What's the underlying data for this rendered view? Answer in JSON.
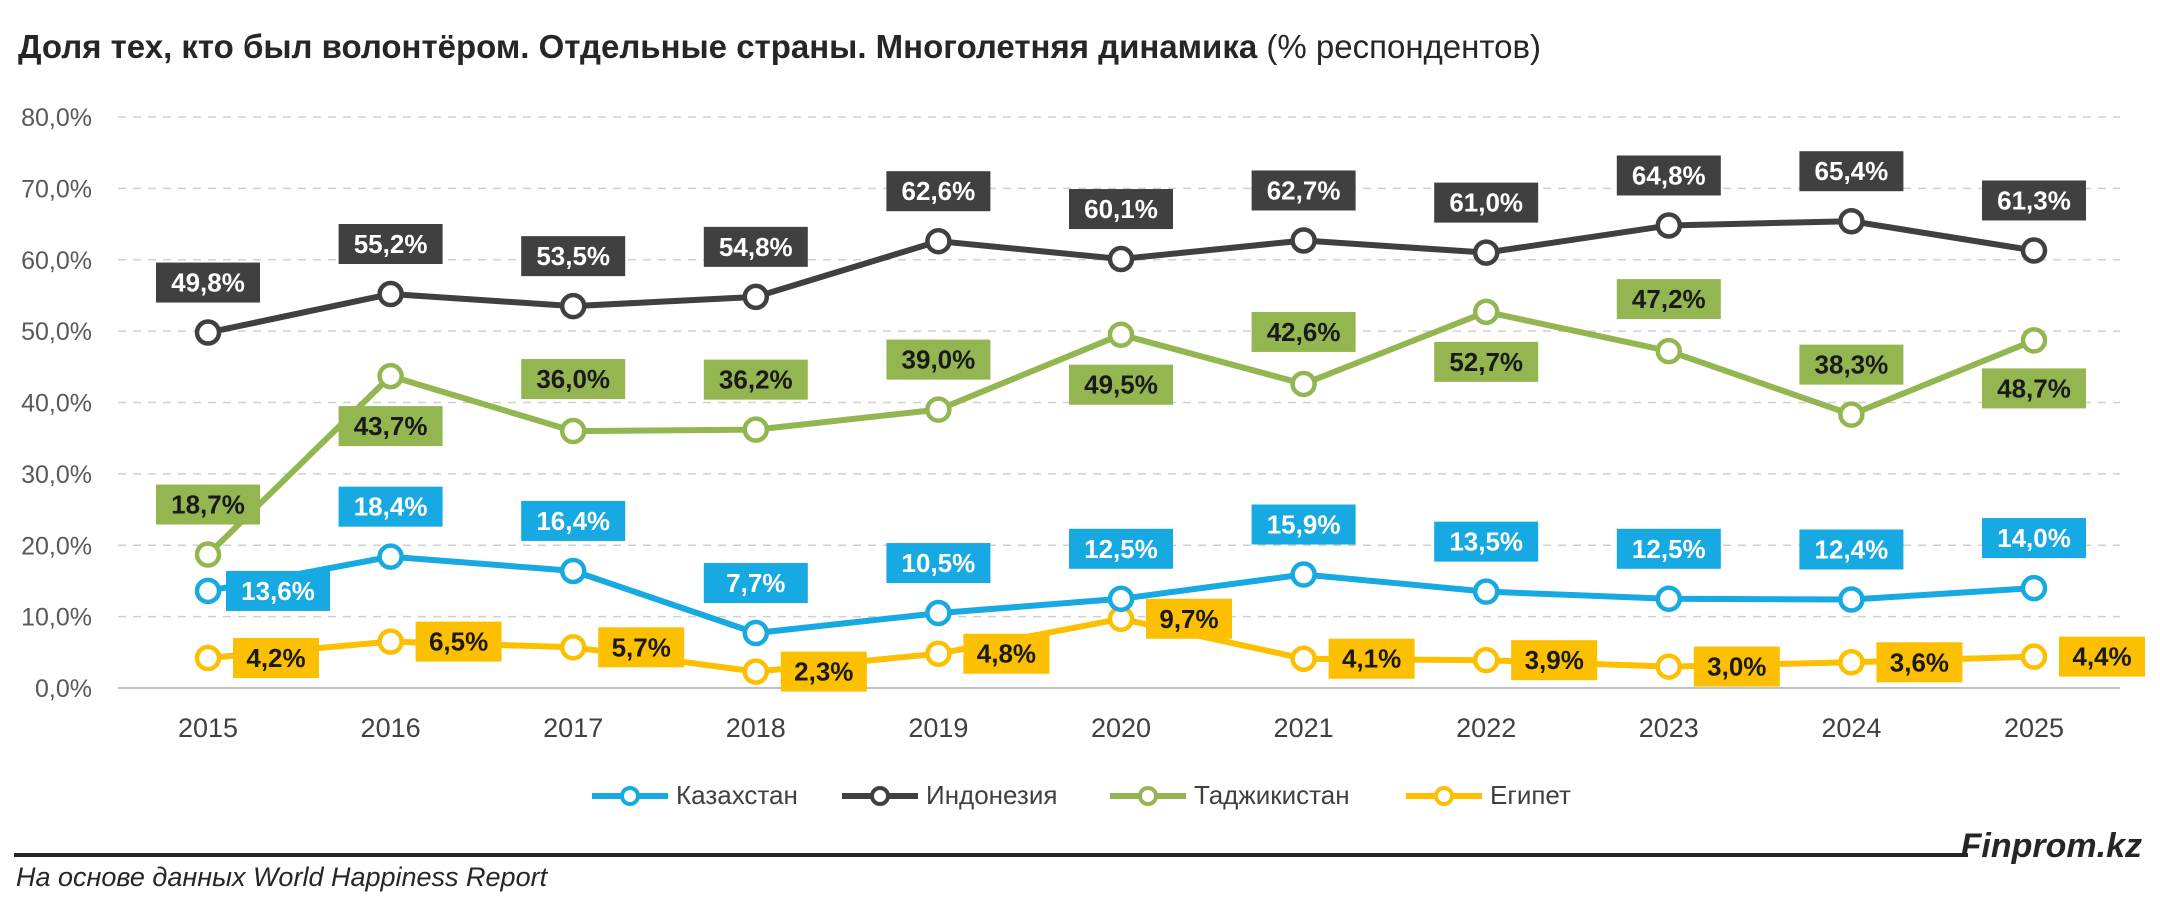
{
  "header": {
    "title_bold": "Доля тех, кто был волонтёром. Отдельные страны. Многолетняя динамика",
    "title_normal": "(% респондентов)"
  },
  "chart_data": {
    "type": "line",
    "title": "Доля тех, кто был волонтёром. Отдельные страны. Многолетняя динамика (% респондентов)",
    "xlabel": "",
    "ylabel": "",
    "categories": [
      "2015",
      "2016",
      "2017",
      "2018",
      "2019",
      "2020",
      "2021",
      "2022",
      "2023",
      "2024",
      "2025"
    ],
    "ylim": [
      0,
      80
    ],
    "y_ticks": [
      "0,0%",
      "10,0%",
      "20,0%",
      "30,0%",
      "40,0%",
      "50,0%",
      "60,0%",
      "70,0%",
      "80,0%"
    ],
    "grid": true,
    "legend_position": "bottom",
    "series": [
      {
        "name": "Казахстан",
        "color": "#17a9e1",
        "values": [
          13.6,
          18.4,
          16.4,
          7.7,
          10.5,
          12.5,
          15.9,
          13.5,
          12.5,
          12.4,
          14.0
        ],
        "labels": [
          "13,6%",
          "18,4%",
          "16,4%",
          "7,7%",
          "10,5%",
          "12,5%",
          "15,9%",
          "13,5%",
          "12,5%",
          "12,4%",
          "14,0%"
        ]
      },
      {
        "name": "Индонезия",
        "color": "#404040",
        "values": [
          49.8,
          55.2,
          53.5,
          54.8,
          62.6,
          60.1,
          62.7,
          61.0,
          64.8,
          65.4,
          61.3
        ],
        "labels": [
          "49,8%",
          "55,2%",
          "53,5%",
          "54,8%",
          "62,6%",
          "60,1%",
          "62,7%",
          "61,0%",
          "64,8%",
          "65,4%",
          "61,3%"
        ]
      },
      {
        "name": "Таджикистан",
        "color": "#94b650",
        "values": [
          18.7,
          43.7,
          36.0,
          36.2,
          39.0,
          49.5,
          42.6,
          52.7,
          47.2,
          38.3,
          48.7
        ],
        "labels": [
          "18,7%",
          "43,7%",
          "36,0%",
          "36,2%",
          "39,0%",
          "49,5%",
          "42,6%",
          "52,7%",
          "47,2%",
          "38,3%",
          "48,7%"
        ]
      },
      {
        "name": "Египет",
        "color": "#fcc000",
        "values": [
          4.2,
          6.5,
          5.7,
          2.3,
          4.8,
          9.7,
          4.1,
          3.9,
          3.0,
          3.6,
          4.4
        ],
        "labels": [
          "4,2%",
          "6,5%",
          "5,7%",
          "2,3%",
          "4,8%",
          "9,7%",
          "4,1%",
          "3,9%",
          "3,0%",
          "3,6%",
          "4,4%"
        ]
      }
    ]
  },
  "legend": {
    "items": [
      "Казахстан",
      "Индонезия",
      "Таджикистан",
      "Египет"
    ]
  },
  "footer": {
    "brand": "Finprom.kz",
    "source": "На основе данных World Happiness Report"
  }
}
